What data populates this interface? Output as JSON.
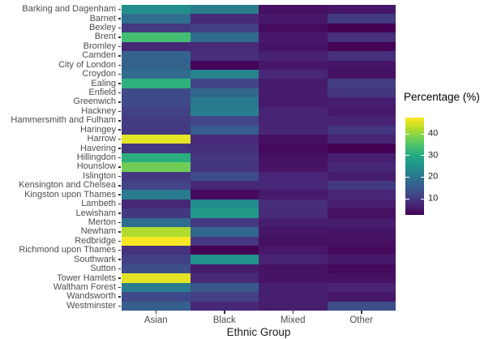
{
  "chart_data": {
    "type": "heatmap",
    "title": "",
    "x_axis": {
      "label": "Ethnic Group",
      "categories": [
        "Asian",
        "Black",
        "Mixed",
        "Other"
      ]
    },
    "y_axis": {
      "label": "",
      "categories": [
        "Barking and Dagenham",
        "Barnet",
        "Bexley",
        "Brent",
        "Bromley",
        "Camden",
        "City of London",
        "Croydon",
        "Ealing",
        "Enfield",
        "Greenwich",
        "Hackney",
        "Hammersmith and Fulham",
        "Haringey",
        "Harrow",
        "Havering",
        "Hillingdon",
        "Hounslow",
        "Islington",
        "Kensington and Chelsea",
        "Kingston upon Thames",
        "Lambeth",
        "Lewisham",
        "Merton",
        "Newham",
        "Redbridge",
        "Richmond upon Thames",
        "Southwark",
        "Sutton",
        "Tower Hamlets",
        "Waltham Forest",
        "Wandsworth",
        "Westminster"
      ]
    },
    "values": [
      [
        24.5,
        21.5,
        4.4,
        5.1
      ],
      [
        18.5,
        7.7,
        5.3,
        10.1
      ],
      [
        10.0,
        11.0,
        3.7,
        2.5
      ],
      [
        33.5,
        17.8,
        5.4,
        8.4
      ],
      [
        7.5,
        7.7,
        4.8,
        2.6
      ],
      [
        16.5,
        8.3,
        6.5,
        8.5
      ],
      [
        16.5,
        2.8,
        5.2,
        5.0
      ],
      [
        18.0,
        22.6,
        7.3,
        4.5
      ],
      [
        31.0,
        11.5,
        5.7,
        10.4
      ],
      [
        12.5,
        17.3,
        5.9,
        9.4
      ],
      [
        12.3,
        20.5,
        5.5,
        6.3
      ],
      [
        11.0,
        21.5,
        6.9,
        5.5
      ],
      [
        10.3,
        11.7,
        6.8,
        6.7
      ],
      [
        10.0,
        15.6,
        7.0,
        9.3
      ],
      [
        45.5,
        7.8,
        4.2,
        7.0
      ],
      [
        9.5,
        8.5,
        3.6,
        2.4
      ],
      [
        30.5,
        9.6,
        4.5,
        6.2
      ],
      [
        37.5,
        9.3,
        4.7,
        7.5
      ],
      [
        9.7,
        12.7,
        7.1,
        6.0
      ],
      [
        11.5,
        7.5,
        7.3,
        9.8
      ],
      [
        21.0,
        3.5,
        5.5,
        7.0
      ],
      [
        7.5,
        24.0,
        8.3,
        6.0
      ],
      [
        9.9,
        26.5,
        7.9,
        4.5
      ],
      [
        18.5,
        9.8,
        6.1,
        5.8
      ],
      [
        42.0,
        17.1,
        5.0,
        4.9
      ],
      [
        47.0,
        9.6,
        4.4,
        4.5
      ],
      [
        9.0,
        2.5,
        5.3,
        3.5
      ],
      [
        10.8,
        25.0,
        6.8,
        5.5
      ],
      [
        13.0,
        5.8,
        4.7,
        3.5
      ],
      [
        45.5,
        7.6,
        4.7,
        4.6
      ],
      [
        21.0,
        14.7,
        6.3,
        6.7
      ],
      [
        12.0,
        11.0,
        6.3,
        5.1
      ],
      [
        16.0,
        7.4,
        6.0,
        13.0
      ]
    ],
    "legend": {
      "title": "Percentage (%)",
      "ticks": [
        10,
        20,
        30,
        40
      ]
    },
    "color_scale": {
      "name": "viridis",
      "domain": [
        2.4,
        47.3
      ],
      "stops": [
        "#440154",
        "#482475",
        "#414487",
        "#355f8d",
        "#2a788e",
        "#21918c",
        "#22a884",
        "#44bf70",
        "#7ad151",
        "#bddf26",
        "#fde725"
      ]
    },
    "layout": {
      "grid": "off",
      "legend_position": "right"
    }
  }
}
